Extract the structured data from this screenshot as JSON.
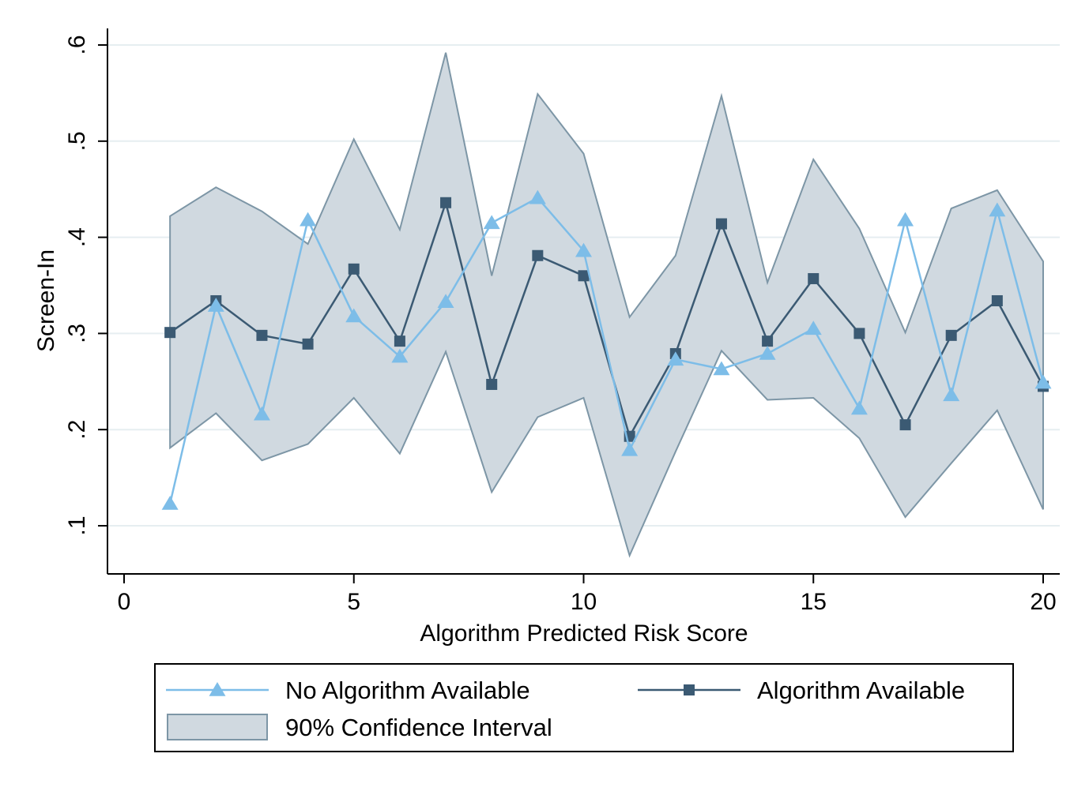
{
  "chart_data": {
    "type": "line",
    "title": "",
    "xlabel": "Algorithm Predicted Risk Score",
    "ylabel": "Screen-In",
    "xlim": [
      0,
      20
    ],
    "ylim": [
      0.05,
      0.62
    ],
    "x": [
      1,
      2,
      3,
      4,
      5,
      6,
      7,
      8,
      9,
      10,
      11,
      12,
      13,
      14,
      15,
      16,
      17,
      18,
      19,
      20
    ],
    "xticks": [
      0,
      5,
      10,
      15,
      20
    ],
    "xtick_labels": [
      "0",
      "5",
      "10",
      "15",
      "20"
    ],
    "yticks": [
      0.1,
      0.2,
      0.3,
      0.4,
      0.5,
      0.6
    ],
    "ytick_labels": [
      ".1",
      ".2",
      ".3",
      ".4",
      ".5",
      ".6"
    ],
    "grid": true,
    "series": [
      {
        "name": "No Algorithm Available",
        "marker": "triangle",
        "color": "#7dbde8",
        "values": [
          0.123,
          0.329,
          0.216,
          0.418,
          0.318,
          0.276,
          0.333,
          0.415,
          0.441,
          0.386,
          0.179,
          0.273,
          0.263,
          0.279,
          0.305,
          0.222,
          0.418,
          0.236,
          0.428,
          0.249
        ]
      },
      {
        "name": "Algorithm Available",
        "marker": "square",
        "color": "#3b5a73",
        "values": [
          0.301,
          0.334,
          0.298,
          0.289,
          0.367,
          0.292,
          0.436,
          0.247,
          0.381,
          0.36,
          0.193,
          0.279,
          0.414,
          0.292,
          0.357,
          0.3,
          0.205,
          0.298,
          0.334,
          0.245
        ]
      }
    ],
    "confidence_interval": {
      "name": "90% Confidence Interval",
      "fill": "#d0d9e0",
      "edge": "#7d96a6",
      "lower": [
        0.181,
        0.217,
        0.168,
        0.185,
        0.233,
        0.175,
        0.281,
        0.135,
        0.213,
        0.233,
        0.069,
        0.177,
        0.282,
        0.231,
        0.233,
        0.191,
        0.109,
        0.165,
        0.22,
        0.117
      ],
      "upper": [
        0.422,
        0.452,
        0.427,
        0.393,
        0.502,
        0.408,
        0.592,
        0.36,
        0.549,
        0.487,
        0.317,
        0.381,
        0.547,
        0.353,
        0.481,
        0.409,
        0.301,
        0.43,
        0.449,
        0.375
      ]
    },
    "legend": {
      "position": "bottom",
      "items": [
        "No Algorithm Available",
        "Algorithm Available",
        "90% Confidence Interval"
      ]
    }
  }
}
